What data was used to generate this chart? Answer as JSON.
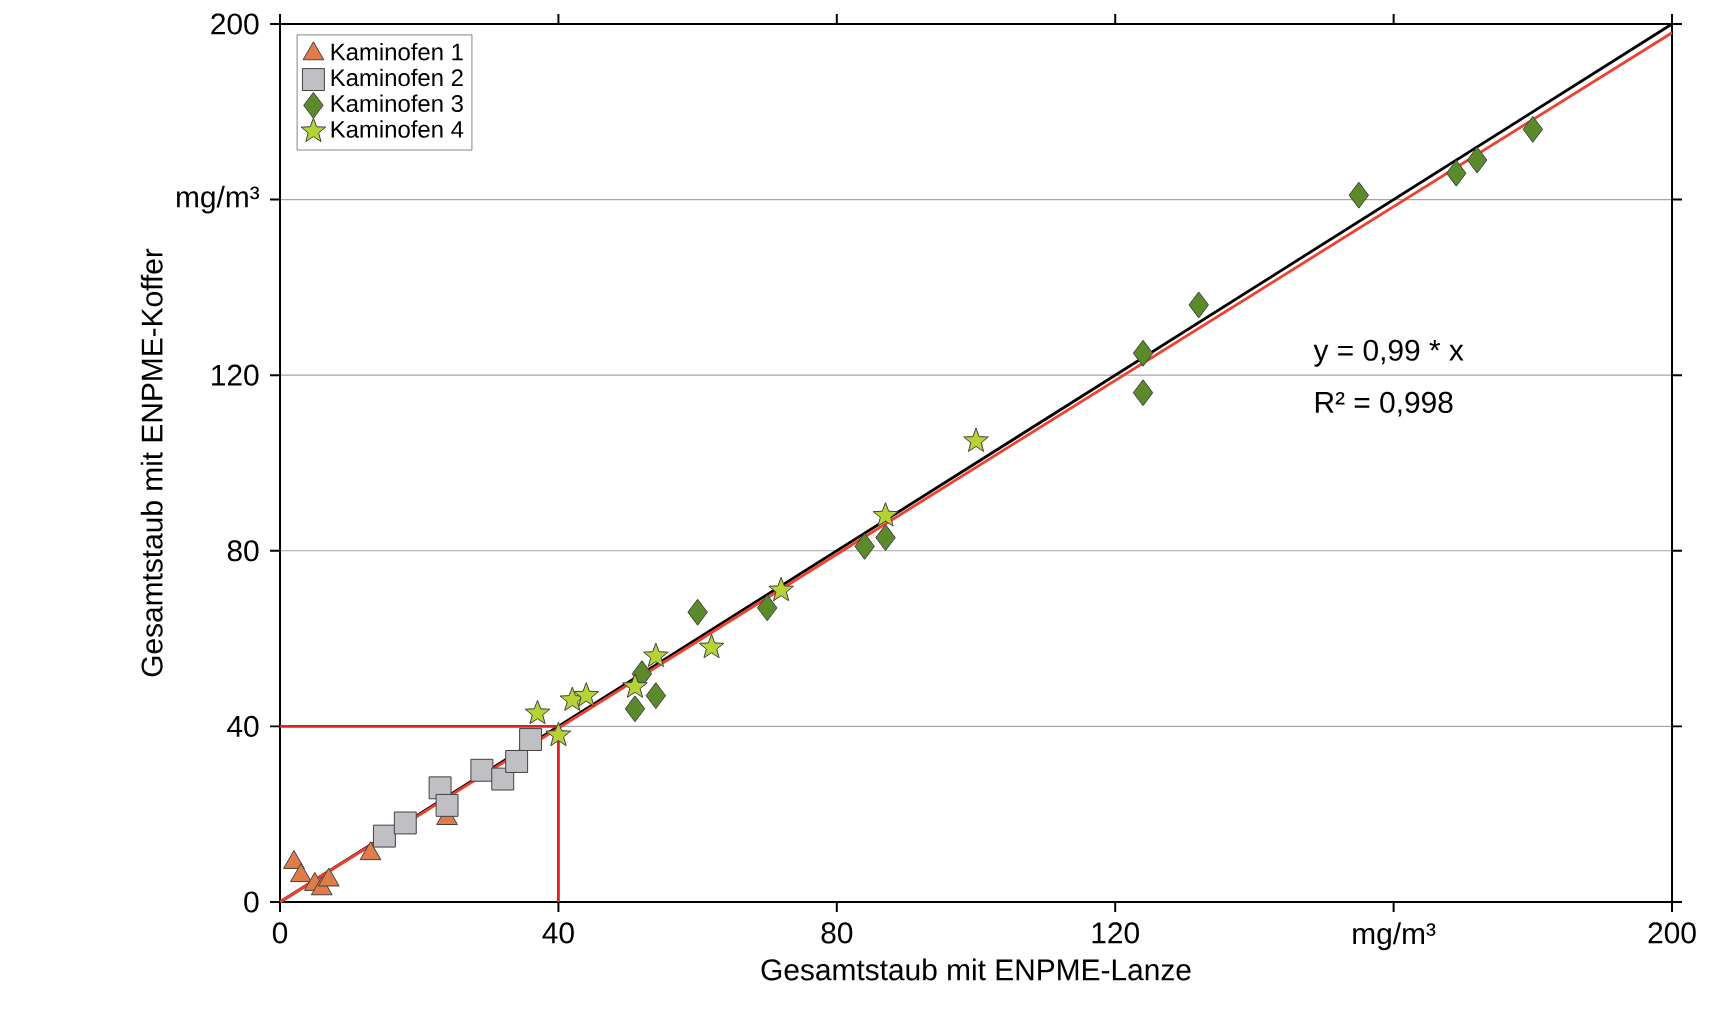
{
  "chart_data": {
    "type": "scatter",
    "xlabel": "Gesamtstaub mit ENPME-Lanze",
    "ylabel": "Gesamtstaub mit ENPME-Koffer",
    "xlim": [
      0,
      200
    ],
    "ylim": [
      0,
      200
    ],
    "xticks": [
      0,
      40,
      80,
      120,
      {
        "value": 160,
        "label": "mg/m³"
      },
      200
    ],
    "yticks": [
      0,
      40,
      80,
      120,
      {
        "value": 160,
        "label": "mg/m³"
      },
      200
    ],
    "grid": "y",
    "legend": "top left",
    "annotations": [
      "y = 0,99 * x",
      "R² = 0,998"
    ],
    "series": [
      {
        "name": "Kaminofen 1",
        "marker": "triangle",
        "color": "#e07b4a",
        "x": [
          2,
          3,
          5,
          6,
          7,
          13,
          24
        ],
        "values": [
          9,
          6,
          4,
          3,
          5,
          11,
          19
        ]
      },
      {
        "name": "Kaminofen 2",
        "marker": "square",
        "color": "#c0c0c4",
        "x": [
          15,
          18,
          23,
          24,
          29,
          32,
          34,
          36
        ],
        "values": [
          15,
          18,
          26,
          22,
          30,
          28,
          32,
          37
        ]
      },
      {
        "name": "Kaminofen 3",
        "marker": "diamond",
        "color": "#5a8a2a",
        "x": [
          51,
          54,
          52,
          60,
          70,
          84,
          87,
          124,
          124,
          132,
          155,
          169,
          172,
          180
        ],
        "values": [
          44,
          47,
          52,
          66,
          67,
          81,
          83,
          125,
          116,
          136,
          161,
          166,
          169,
          176
        ]
      },
      {
        "name": "Kaminofen 4",
        "marker": "star",
        "color": "#b5d334",
        "x": [
          37,
          40,
          42,
          44,
          51,
          54,
          62,
          72,
          87,
          100
        ],
        "values": [
          43,
          38,
          46,
          47,
          49,
          56,
          58,
          71,
          88,
          105
        ]
      },
      {
        "type": "line",
        "line_style": "solid",
        "color": "#000000",
        "x": [
          0,
          200
        ],
        "values": [
          0,
          200
        ]
      },
      {
        "type": "line",
        "line_style": "solid",
        "color": "#f04030",
        "x": [
          0,
          200
        ],
        "values": [
          0,
          198
        ]
      },
      {
        "type": "line",
        "line_style": "solid",
        "color": "#e02020",
        "x": [
          0,
          40,
          40
        ],
        "values": [
          40,
          40,
          0
        ]
      }
    ]
  }
}
